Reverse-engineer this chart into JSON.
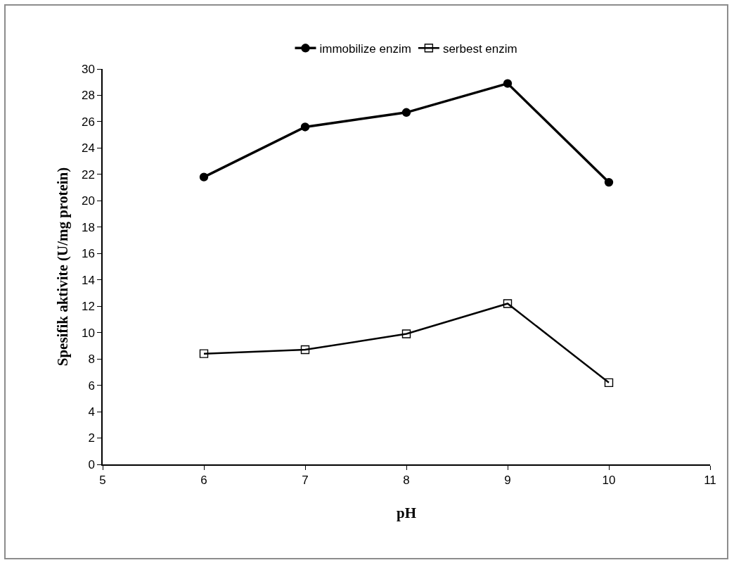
{
  "chart_data": {
    "type": "line",
    "xlabel": "pH",
    "ylabel": "Spesifik aktivite (U/mg protein)",
    "x": [
      6,
      7,
      8,
      9,
      10
    ],
    "series": [
      {
        "name": "immobilize enzim",
        "color": "#000000",
        "values": [
          21.8,
          25.6,
          26.7,
          28.9,
          21.4
        ],
        "marker": "circle"
      },
      {
        "name": "serbest enzim",
        "color": "#000000",
        "values": [
          8.4,
          8.7,
          9.9,
          12.2,
          6.2
        ],
        "marker": "square"
      }
    ],
    "xlim": [
      5,
      11
    ],
    "xticks": [
      5,
      6,
      7,
      8,
      9,
      10,
      11
    ],
    "ylim": [
      0,
      30
    ],
    "yticks": [
      0,
      2,
      4,
      6,
      8,
      10,
      12,
      14,
      16,
      18,
      20,
      22,
      24,
      26,
      28,
      30
    ],
    "grid": false,
    "legend": "top",
    "line_style": "solid"
  }
}
